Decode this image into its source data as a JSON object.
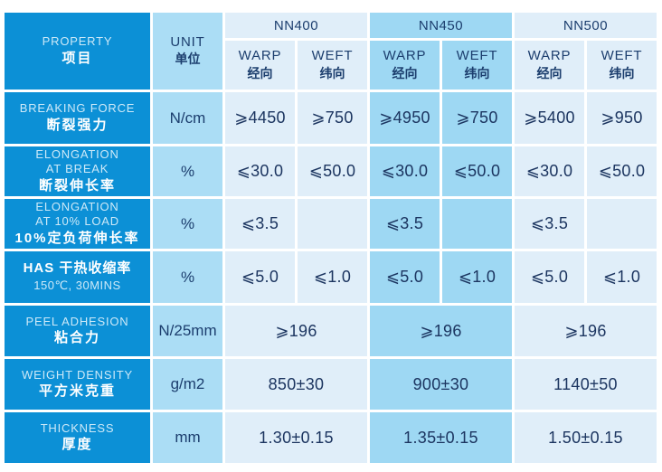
{
  "title": "Fabric specification table",
  "colors": {
    "primary_blue": "#0C90D6",
    "unit_column_blue": "#ABDDF5",
    "light_cell_blue": "#E0EEF9",
    "medium_cell_blue": "#9ED8F3",
    "value_text": "#1C3560",
    "header_text": "#1C3E6E",
    "light_text_on_blue": "#CDE9F8",
    "background": "#FFFFFF"
  },
  "header": {
    "property_en": "PROPERTY",
    "property_zh": "项目",
    "unit_en": "UNIT",
    "unit_zh": "单位",
    "groups": [
      {
        "name": "NN400"
      },
      {
        "name": "NN450"
      },
      {
        "name": "NN500"
      }
    ],
    "warp_en": "WARP",
    "warp_zh": "经向",
    "weft_en": "WEFT",
    "weft_zh": "纬向"
  },
  "rows": [
    {
      "en": "BREAKING FORCE",
      "zh": "断裂强力",
      "unit": "N/cm",
      "values": [
        "⩾4450",
        "⩾750",
        "⩾4950",
        "⩾750",
        "⩾5400",
        "⩾950"
      ]
    },
    {
      "en": "ELONGATION\nAT BREAK",
      "zh": "断裂伸长率",
      "unit": "%",
      "values": [
        "⩽30.0",
        "⩽50.0",
        "⩽30.0",
        "⩽50.0",
        "⩽30.0",
        "⩽50.0"
      ]
    },
    {
      "en": "ELONGATION\nAT 10% LOAD",
      "zh": "10%定负荷伸长率",
      "unit": "%",
      "values": [
        "⩽3.5",
        "",
        "⩽3.5",
        "",
        "⩽3.5",
        ""
      ]
    },
    {
      "en": "HAS  干热收缩率",
      "zh": "150℃, 30MINS",
      "unit": "%",
      "values": [
        "⩽5.0",
        "⩽1.0",
        "⩽5.0",
        "⩽1.0",
        "⩽5.0",
        "⩽1.0"
      ]
    },
    {
      "en": "PEEL ADHESION",
      "zh": "粘合力",
      "unit": "N/25mm",
      "merged_values": [
        "⩾196",
        "⩾196",
        "⩾196"
      ]
    },
    {
      "en": "WEIGHT DENSITY",
      "zh": "平方米克重",
      "unit": "g/m2",
      "merged_values": [
        "850±30",
        "900±30",
        "1140±50"
      ]
    },
    {
      "en": "THICKNESS",
      "zh": "厚度",
      "unit": "mm",
      "merged_values": [
        "1.30±0.15",
        "1.35±0.15",
        "1.50±0.15"
      ]
    }
  ]
}
